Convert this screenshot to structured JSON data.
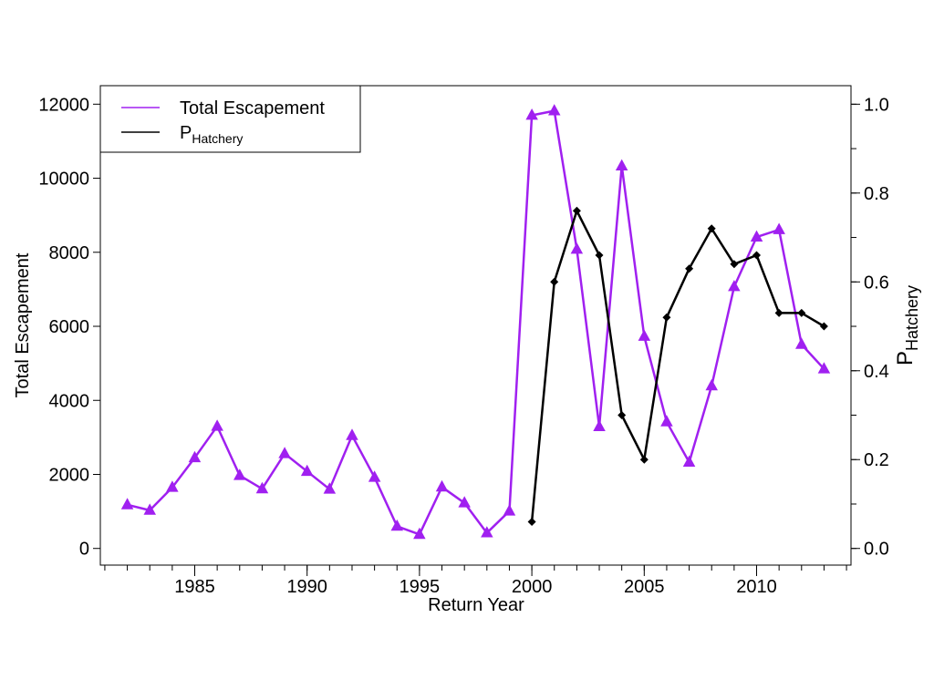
{
  "chart_data": {
    "type": "line",
    "xlabel": "Return Year",
    "ylabel": "Total Escapement",
    "y2label": {
      "base": "P",
      "subscript": "Hatchery"
    },
    "xlim": [
      1980.8,
      2014.2
    ],
    "ylim": [
      -450,
      12500
    ],
    "y2lim": [
      -0.0375,
      1.0417
    ],
    "xticks": [
      1985,
      1990,
      1995,
      2000,
      2005,
      2010
    ],
    "xticks_minor": [
      1981,
      1982,
      1983,
      1984,
      1985,
      1986,
      1987,
      1988,
      1989,
      1990,
      1991,
      1992,
      1993,
      1994,
      1995,
      1996,
      1997,
      1998,
      1999,
      2000,
      2001,
      2002,
      2003,
      2004,
      2005,
      2006,
      2007,
      2008,
      2009,
      2010,
      2011,
      2012,
      2013,
      2014
    ],
    "yticks": [
      0,
      2000,
      4000,
      6000,
      8000,
      10000,
      12000
    ],
    "y2ticks": [
      0.0,
      0.2,
      0.4,
      0.6,
      0.8,
      1.0
    ],
    "y2tick_labels": [
      "0.0",
      "0.2",
      "0.4",
      "0.6",
      "0.8",
      "1.0"
    ],
    "y2ticks_minor": [
      0.0,
      0.1,
      0.2,
      0.3,
      0.4,
      0.5,
      0.6,
      0.7,
      0.8,
      0.9,
      1.0
    ],
    "grid": false,
    "legend_position": "top-left",
    "series": [
      {
        "name": "Total Escapement",
        "axis": "left",
        "color": "#a020f0",
        "marker": "triangle",
        "points": [
          [
            1982,
            1180
          ],
          [
            1983,
            1030
          ],
          [
            1984,
            1650
          ],
          [
            1985,
            2450
          ],
          [
            1986,
            3300
          ],
          [
            1987,
            1970
          ],
          [
            1988,
            1610
          ],
          [
            1989,
            2560
          ],
          [
            1990,
            2080
          ],
          [
            1991,
            1600
          ],
          [
            1992,
            3050
          ],
          [
            1993,
            1920
          ],
          [
            1994,
            600
          ],
          [
            1995,
            380
          ],
          [
            1996,
            1660
          ],
          [
            1997,
            1230
          ],
          [
            1998,
            420
          ],
          [
            1999,
            1010
          ],
          [
            2000,
            11700
          ],
          [
            2001,
            11820
          ],
          [
            2002,
            8080
          ],
          [
            2003,
            3290
          ],
          [
            2004,
            10330
          ],
          [
            2005,
            5730
          ],
          [
            2006,
            3420
          ],
          [
            2007,
            2330
          ],
          [
            2008,
            4390
          ],
          [
            2009,
            7070
          ],
          [
            2010,
            8410
          ],
          [
            2011,
            8610
          ],
          [
            2012,
            5510
          ],
          [
            2013,
            4850
          ]
        ]
      },
      {
        "name": "P_Hatchery",
        "legend_label": {
          "base": "P",
          "subscript": "Hatchery"
        },
        "axis": "right",
        "color": "#000000",
        "marker": "diamond",
        "points": [
          [
            2000,
            0.06
          ],
          [
            2001,
            0.6
          ],
          [
            2002,
            0.76
          ],
          [
            2003,
            0.66
          ],
          [
            2004,
            0.3
          ],
          [
            2005,
            0.2
          ],
          [
            2006,
            0.52
          ],
          [
            2007,
            0.63
          ],
          [
            2008,
            0.72
          ],
          [
            2009,
            0.64
          ],
          [
            2010,
            0.66
          ],
          [
            2011,
            0.53
          ],
          [
            2012,
            0.53
          ],
          [
            2013,
            0.5
          ]
        ]
      }
    ]
  }
}
